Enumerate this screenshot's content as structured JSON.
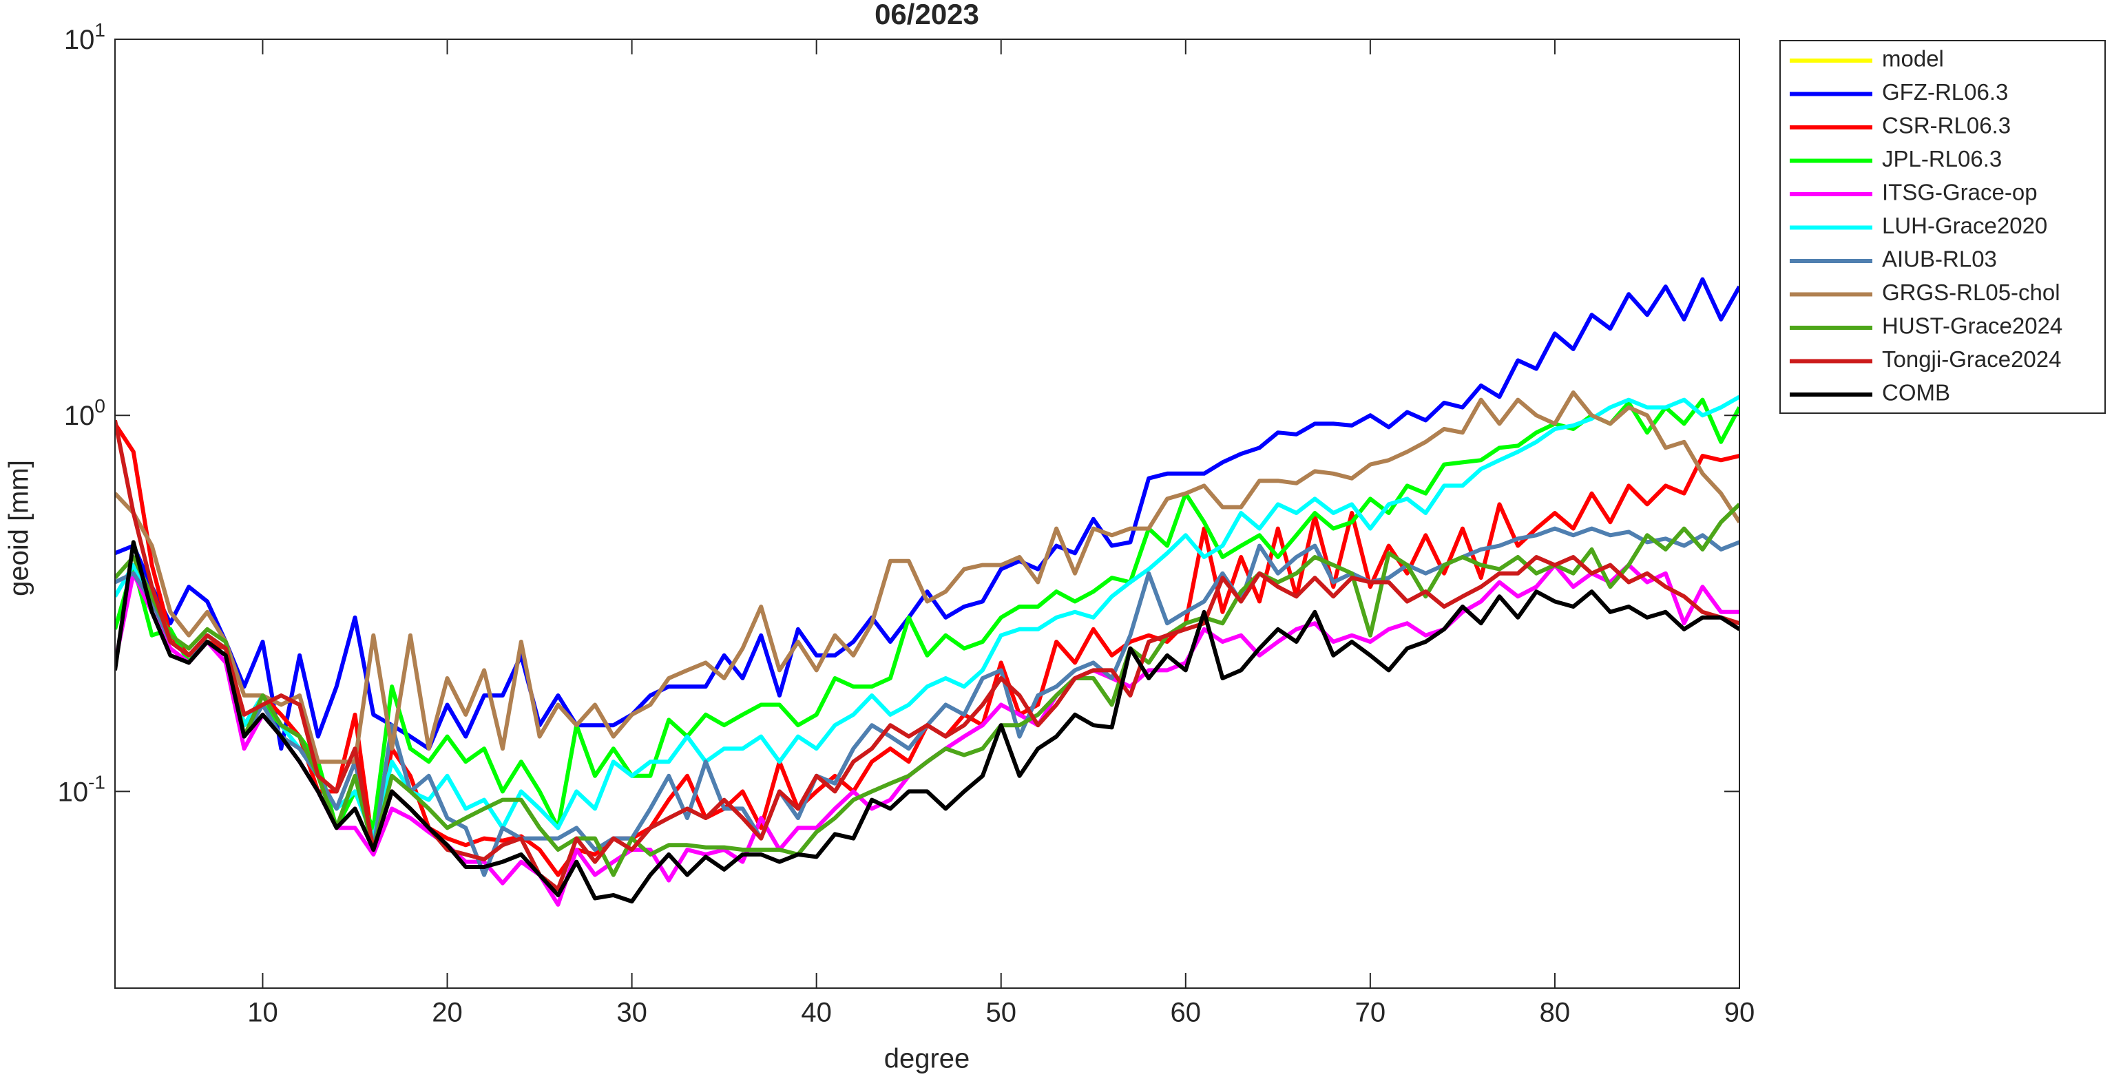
{
  "chart_data": {
    "type": "line",
    "title": "06/2023",
    "xlabel": "degree",
    "ylabel": "geoid [mm]",
    "log_y": true,
    "grid": false,
    "legend_position": "outside-right",
    "x": [
      2,
      3,
      4,
      5,
      6,
      7,
      8,
      9,
      10,
      11,
      12,
      13,
      14,
      15,
      16,
      17,
      18,
      19,
      20,
      21,
      22,
      23,
      24,
      25,
      26,
      27,
      28,
      29,
      30,
      31,
      32,
      33,
      34,
      35,
      36,
      37,
      38,
      39,
      40,
      41,
      42,
      43,
      44,
      45,
      46,
      47,
      48,
      49,
      50,
      51,
      52,
      53,
      54,
      55,
      56,
      57,
      58,
      59,
      60,
      61,
      62,
      63,
      64,
      65,
      66,
      67,
      68,
      69,
      70,
      71,
      72,
      73,
      74,
      75,
      76,
      77,
      78,
      79,
      80,
      81,
      82,
      83,
      84,
      85,
      86,
      87,
      88,
      89,
      90
    ],
    "xlim": [
      2,
      90
    ],
    "xticks": [
      10,
      20,
      30,
      40,
      50,
      60,
      70,
      80,
      90
    ],
    "ylim": [
      0.03,
      10
    ],
    "yticks": [
      {
        "value": 0.1,
        "label": "10^-1"
      },
      {
        "value": 1,
        "label": "10^0"
      },
      {
        "value": 10,
        "label": "10^1"
      }
    ],
    "series": [
      {
        "name": "model",
        "color": "#ffff00",
        "values": [
          null,
          null,
          null,
          null,
          null,
          null,
          null,
          null,
          null,
          null,
          null,
          null,
          null,
          null,
          null,
          null,
          null,
          null,
          null,
          null,
          null,
          null,
          null,
          null,
          null,
          null,
          null,
          null,
          null,
          null,
          null,
          null,
          null,
          null,
          null,
          null,
          null,
          null,
          null,
          null,
          null,
          null,
          null,
          null,
          null,
          null,
          null,
          null,
          null,
          null,
          null,
          null,
          null,
          null,
          null,
          null,
          null,
          null,
          null,
          null,
          null,
          null,
          null,
          null,
          null,
          null,
          null,
          null,
          null,
          null,
          null,
          null,
          null,
          null,
          null,
          null,
          null,
          null,
          null,
          null,
          null,
          null,
          null,
          null,
          null,
          null,
          null,
          null,
          null
        ]
      },
      {
        "name": "GFZ-RL06.3",
        "color": "#0000ff",
        "values": [
          0.43,
          0.45,
          0.35,
          0.28,
          0.35,
          0.32,
          0.25,
          0.19,
          0.25,
          0.13,
          0.23,
          0.14,
          0.19,
          0.29,
          0.16,
          0.15,
          0.14,
          0.13,
          0.17,
          0.14,
          0.18,
          0.18,
          0.23,
          0.15,
          0.18,
          0.15,
          0.15,
          0.15,
          0.16,
          0.18,
          0.19,
          0.19,
          0.19,
          0.23,
          0.2,
          0.26,
          0.18,
          0.27,
          0.23,
          0.23,
          0.25,
          0.29,
          0.25,
          0.29,
          0.34,
          0.29,
          0.31,
          0.32,
          0.39,
          0.41,
          0.39,
          0.45,
          0.43,
          0.53,
          0.45,
          0.46,
          0.68,
          0.7,
          0.7,
          0.7,
          0.75,
          0.79,
          0.82,
          0.9,
          0.89,
          0.95,
          0.95,
          0.94,
          1.0,
          0.93,
          1.02,
          0.97,
          1.08,
          1.05,
          1.2,
          1.12,
          1.4,
          1.33,
          1.65,
          1.5,
          1.85,
          1.7,
          2.1,
          1.85,
          2.2,
          1.8,
          2.3,
          1.8,
          2.2
        ]
      },
      {
        "name": "CSR-RL06.3",
        "color": "#ff0000",
        "values": [
          0.95,
          0.8,
          0.4,
          0.26,
          0.23,
          0.25,
          0.24,
          0.15,
          0.18,
          0.16,
          0.14,
          0.1,
          0.1,
          0.16,
          0.07,
          0.13,
          0.11,
          0.08,
          0.075,
          0.072,
          0.075,
          0.074,
          0.076,
          0.07,
          0.06,
          0.07,
          0.068,
          0.075,
          0.075,
          0.08,
          0.095,
          0.11,
          0.085,
          0.09,
          0.1,
          0.08,
          0.12,
          0.09,
          0.1,
          0.11,
          0.1,
          0.12,
          0.13,
          0.12,
          0.15,
          0.14,
          0.16,
          0.15,
          0.22,
          0.16,
          0.17,
          0.25,
          0.22,
          0.27,
          0.23,
          0.25,
          0.26,
          0.25,
          0.28,
          0.5,
          0.3,
          0.42,
          0.32,
          0.5,
          0.33,
          0.54,
          0.35,
          0.55,
          0.35,
          0.45,
          0.38,
          0.48,
          0.38,
          0.5,
          0.37,
          0.58,
          0.45,
          0.5,
          0.55,
          0.5,
          0.62,
          0.52,
          0.65,
          0.58,
          0.65,
          0.62,
          0.78,
          0.76,
          0.78
        ]
      },
      {
        "name": "JPL-RL06.3",
        "color": "#00ff00",
        "values": [
          0.27,
          0.4,
          0.26,
          0.27,
          0.22,
          0.26,
          0.24,
          0.15,
          0.17,
          0.15,
          0.14,
          0.12,
          0.08,
          0.1,
          0.08,
          0.19,
          0.13,
          0.12,
          0.14,
          0.12,
          0.13,
          0.1,
          0.12,
          0.1,
          0.08,
          0.15,
          0.11,
          0.13,
          0.11,
          0.11,
          0.155,
          0.14,
          0.16,
          0.15,
          0.16,
          0.17,
          0.17,
          0.15,
          0.16,
          0.2,
          0.19,
          0.19,
          0.2,
          0.29,
          0.23,
          0.26,
          0.24,
          0.25,
          0.29,
          0.31,
          0.31,
          0.34,
          0.32,
          0.34,
          0.37,
          0.36,
          0.5,
          0.45,
          0.62,
          0.52,
          0.42,
          0.45,
          0.48,
          0.42,
          0.48,
          0.55,
          0.5,
          0.52,
          0.6,
          0.55,
          0.65,
          0.62,
          0.74,
          0.75,
          0.76,
          0.82,
          0.83,
          0.9,
          0.95,
          0.92,
          1.0,
          0.95,
          1.08,
          0.9,
          1.05,
          0.95,
          1.1,
          0.85,
          1.05
        ]
      },
      {
        "name": "ITSG-Grace-op",
        "color": "#ff00ff",
        "values": [
          0.22,
          0.38,
          0.3,
          0.24,
          0.22,
          0.25,
          0.22,
          0.13,
          0.16,
          0.14,
          0.12,
          0.1,
          0.08,
          0.08,
          0.068,
          0.09,
          0.085,
          0.078,
          0.072,
          0.065,
          0.065,
          0.057,
          0.065,
          0.06,
          0.05,
          0.07,
          0.06,
          0.065,
          0.07,
          0.07,
          0.058,
          0.07,
          0.068,
          0.07,
          0.065,
          0.085,
          0.07,
          0.08,
          0.08,
          0.09,
          0.1,
          0.09,
          0.095,
          0.11,
          0.12,
          0.13,
          0.14,
          0.15,
          0.17,
          0.16,
          0.15,
          0.18,
          0.2,
          0.21,
          0.2,
          0.19,
          0.21,
          0.21,
          0.22,
          0.27,
          0.25,
          0.26,
          0.23,
          0.25,
          0.27,
          0.28,
          0.25,
          0.26,
          0.25,
          0.27,
          0.28,
          0.26,
          0.27,
          0.3,
          0.32,
          0.36,
          0.33,
          0.35,
          0.4,
          0.35,
          0.38,
          0.36,
          0.4,
          0.36,
          0.38,
          0.28,
          0.35,
          0.3,
          0.3
        ]
      },
      {
        "name": "LUH-Grace2020",
        "color": "#00ffff",
        "values": [
          0.33,
          0.4,
          0.32,
          0.25,
          0.23,
          0.26,
          0.24,
          0.15,
          0.18,
          0.15,
          0.13,
          0.11,
          0.09,
          0.1,
          0.075,
          0.12,
          0.1,
          0.095,
          0.11,
          0.09,
          0.095,
          0.08,
          0.1,
          0.09,
          0.08,
          0.1,
          0.09,
          0.12,
          0.11,
          0.12,
          0.12,
          0.14,
          0.12,
          0.13,
          0.13,
          0.14,
          0.12,
          0.14,
          0.13,
          0.15,
          0.16,
          0.18,
          0.16,
          0.17,
          0.19,
          0.2,
          0.19,
          0.21,
          0.26,
          0.27,
          0.27,
          0.29,
          0.3,
          0.29,
          0.33,
          0.36,
          0.39,
          0.43,
          0.48,
          0.42,
          0.45,
          0.55,
          0.5,
          0.58,
          0.55,
          0.6,
          0.55,
          0.58,
          0.5,
          0.58,
          0.6,
          0.55,
          0.65,
          0.65,
          0.72,
          0.76,
          0.8,
          0.85,
          0.92,
          0.94,
          0.98,
          1.05,
          1.1,
          1.05,
          1.05,
          1.1,
          1.0,
          1.05,
          1.12
        ]
      },
      {
        "name": "AIUB-RL03",
        "color": "#4f7fb0",
        "values": [
          0.36,
          0.38,
          0.32,
          0.25,
          0.23,
          0.25,
          0.23,
          0.14,
          0.17,
          0.14,
          0.13,
          0.11,
          0.09,
          0.12,
          0.07,
          0.15,
          0.1,
          0.11,
          0.085,
          0.08,
          0.06,
          0.08,
          0.075,
          0.075,
          0.075,
          0.08,
          0.07,
          0.075,
          0.075,
          0.09,
          0.11,
          0.085,
          0.12,
          0.09,
          0.09,
          0.075,
          0.1,
          0.085,
          0.11,
          0.105,
          0.13,
          0.15,
          0.14,
          0.13,
          0.15,
          0.17,
          0.16,
          0.2,
          0.21,
          0.14,
          0.18,
          0.19,
          0.21,
          0.22,
          0.2,
          0.26,
          0.38,
          0.28,
          0.3,
          0.32,
          0.38,
          0.32,
          0.45,
          0.38,
          0.42,
          0.45,
          0.36,
          0.38,
          0.36,
          0.37,
          0.4,
          0.38,
          0.4,
          0.42,
          0.44,
          0.45,
          0.47,
          0.48,
          0.5,
          0.48,
          0.5,
          0.48,
          0.49,
          0.46,
          0.47,
          0.45,
          0.48,
          0.44,
          0.46
        ]
      },
      {
        "name": "GRGS-RL05-chol",
        "color": "#b08050",
        "values": [
          0.62,
          0.55,
          0.45,
          0.3,
          0.26,
          0.3,
          0.25,
          0.18,
          0.18,
          0.17,
          0.18,
          0.12,
          0.12,
          0.12,
          0.26,
          0.13,
          0.26,
          0.13,
          0.2,
          0.16,
          0.21,
          0.13,
          0.25,
          0.14,
          0.17,
          0.15,
          0.17,
          0.14,
          0.16,
          0.17,
          0.2,
          0.21,
          0.22,
          0.2,
          0.24,
          0.31,
          0.21,
          0.25,
          0.21,
          0.26,
          0.23,
          0.28,
          0.41,
          0.41,
          0.32,
          0.34,
          0.39,
          0.4,
          0.4,
          0.42,
          0.36,
          0.5,
          0.38,
          0.5,
          0.48,
          0.5,
          0.5,
          0.6,
          0.62,
          0.65,
          0.57,
          0.57,
          0.67,
          0.67,
          0.66,
          0.71,
          0.7,
          0.68,
          0.74,
          0.76,
          0.8,
          0.85,
          0.92,
          0.9,
          1.1,
          0.95,
          1.1,
          1.0,
          0.95,
          1.15,
          1.0,
          0.95,
          1.05,
          1.0,
          0.82,
          0.85,
          0.7,
          0.62,
          0.52
        ]
      },
      {
        "name": "HUST-Grace2024",
        "color": "#4da619",
        "values": [
          0.37,
          0.42,
          0.33,
          0.26,
          0.24,
          0.27,
          0.25,
          0.14,
          0.18,
          0.15,
          0.14,
          0.11,
          0.08,
          0.11,
          0.07,
          0.11,
          0.1,
          0.09,
          0.08,
          0.085,
          0.09,
          0.095,
          0.095,
          0.08,
          0.07,
          0.075,
          0.075,
          0.06,
          0.075,
          0.068,
          0.072,
          0.072,
          0.071,
          0.071,
          0.07,
          0.07,
          0.07,
          0.068,
          0.078,
          0.085,
          0.095,
          0.1,
          0.105,
          0.11,
          0.12,
          0.13,
          0.125,
          0.13,
          0.15,
          0.15,
          0.16,
          0.18,
          0.2,
          0.2,
          0.17,
          0.24,
          0.22,
          0.26,
          0.28,
          0.29,
          0.28,
          0.34,
          0.38,
          0.36,
          0.38,
          0.42,
          0.4,
          0.38,
          0.26,
          0.43,
          0.4,
          0.33,
          0.4,
          0.42,
          0.4,
          0.39,
          0.42,
          0.38,
          0.4,
          0.38,
          0.44,
          0.35,
          0.4,
          0.48,
          0.44,
          0.5,
          0.44,
          0.52,
          0.58
        ]
      },
      {
        "name": "Tongji-Grace2024",
        "color": "#cc1a1a",
        "values": [
          0.97,
          0.55,
          0.35,
          0.25,
          0.23,
          0.26,
          0.24,
          0.16,
          0.17,
          0.18,
          0.17,
          0.11,
          0.1,
          0.13,
          0.07,
          0.1,
          0.09,
          0.08,
          0.07,
          0.068,
          0.066,
          0.072,
          0.075,
          0.06,
          0.055,
          0.075,
          0.065,
          0.075,
          0.07,
          0.08,
          0.085,
          0.09,
          0.085,
          0.095,
          0.085,
          0.075,
          0.1,
          0.09,
          0.11,
          0.1,
          0.12,
          0.13,
          0.15,
          0.14,
          0.15,
          0.14,
          0.15,
          0.17,
          0.2,
          0.18,
          0.15,
          0.17,
          0.2,
          0.21,
          0.21,
          0.18,
          0.25,
          0.26,
          0.27,
          0.28,
          0.37,
          0.32,
          0.38,
          0.35,
          0.33,
          0.37,
          0.33,
          0.37,
          0.36,
          0.36,
          0.32,
          0.34,
          0.31,
          0.33,
          0.35,
          0.38,
          0.38,
          0.42,
          0.4,
          0.42,
          0.38,
          0.4,
          0.36,
          0.38,
          0.35,
          0.33,
          0.3,
          0.29,
          0.28
        ]
      },
      {
        "name": "COMB",
        "color": "#000000",
        "values": [
          0.21,
          0.46,
          0.3,
          0.23,
          0.22,
          0.25,
          0.23,
          0.14,
          0.16,
          0.14,
          0.12,
          0.1,
          0.08,
          0.09,
          0.07,
          0.1,
          0.09,
          0.08,
          0.072,
          0.063,
          0.063,
          0.065,
          0.068,
          0.06,
          0.053,
          0.065,
          0.052,
          0.053,
          0.051,
          0.06,
          0.068,
          0.06,
          0.067,
          0.062,
          0.068,
          0.068,
          0.065,
          0.068,
          0.067,
          0.077,
          0.075,
          0.095,
          0.09,
          0.1,
          0.1,
          0.09,
          0.1,
          0.11,
          0.15,
          0.11,
          0.13,
          0.14,
          0.16,
          0.15,
          0.148,
          0.24,
          0.2,
          0.23,
          0.21,
          0.3,
          0.2,
          0.21,
          0.24,
          0.27,
          0.25,
          0.3,
          0.23,
          0.25,
          0.23,
          0.21,
          0.24,
          0.25,
          0.27,
          0.31,
          0.28,
          0.33,
          0.29,
          0.34,
          0.32,
          0.31,
          0.34,
          0.3,
          0.31,
          0.29,
          0.3,
          0.27,
          0.29,
          0.29,
          0.27
        ]
      }
    ]
  }
}
